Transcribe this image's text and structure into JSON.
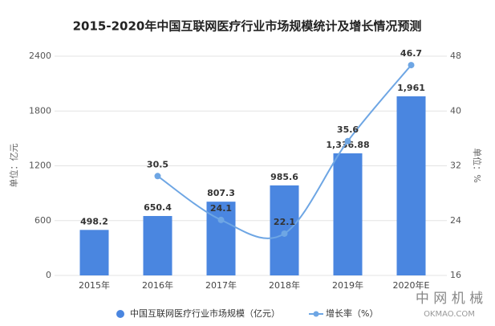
{
  "chart_data": {
    "type": "bar",
    "title": "2015-2020年中国互联网医疗行业市场规模统计及增长情况预测",
    "ylabel": "单位：亿元",
    "y2label": "单位：%",
    "categories": [
      "2015年",
      "2016年",
      "2017年",
      "2018年",
      "2019年",
      "2020年E"
    ],
    "series": [
      {
        "name": "中国互联网医疗行业市场规模（亿元）",
        "type": "bar",
        "color": "#4a86e0",
        "values": [
          498.2,
          650.4,
          807.3,
          985.6,
          1336.88,
          1961
        ],
        "value_labels": [
          "498.2",
          "650.4",
          "807.3",
          "985.6",
          "1,336.88",
          "1,961"
        ]
      },
      {
        "name": "增长率（%）",
        "type": "line",
        "axis": "y2",
        "color": "#6ea6e4",
        "values": [
          null,
          30.5,
          24.1,
          22.1,
          35.6,
          46.7
        ]
      }
    ],
    "ylim": [
      0,
      2400
    ],
    "yticks": [
      0,
      600,
      1200,
      1800,
      2400
    ],
    "y2lim": [
      16,
      48
    ],
    "y2ticks": [
      16,
      24,
      32,
      40,
      48
    ],
    "grid": true,
    "legend": "bottom",
    "watermark": [
      "中 网 机 械",
      "OKMAO.COM"
    ]
  }
}
